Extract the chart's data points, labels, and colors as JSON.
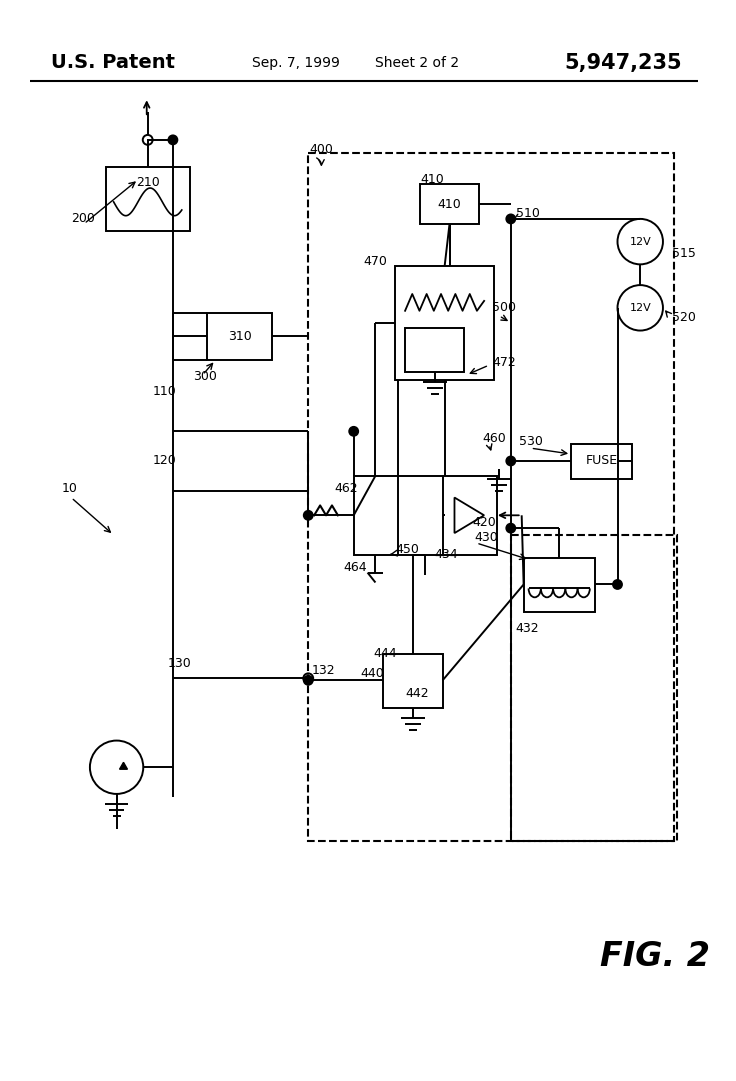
{
  "bg_color": "#ffffff",
  "header_left": "U.S. Patent",
  "header_center": "Sep. 7, 1999",
  "header_center2": "Sheet 2 of 2",
  "header_right": "5,947,235",
  "fig_label": "FIG. 2"
}
